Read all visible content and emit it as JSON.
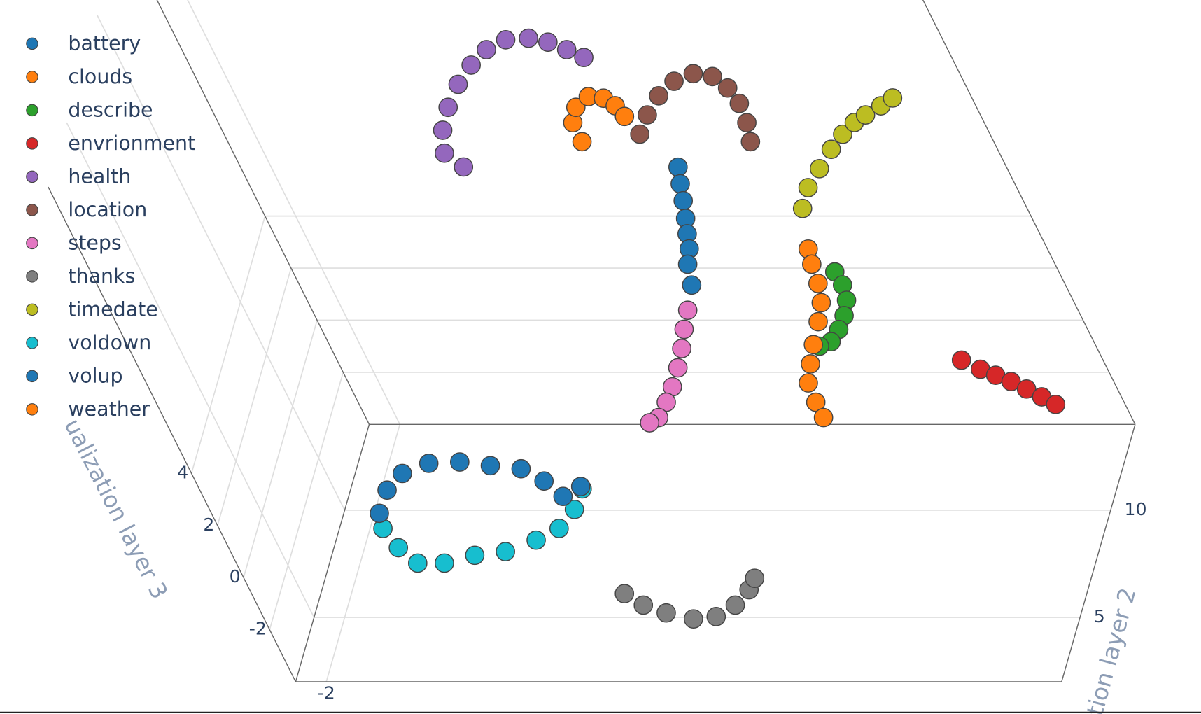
{
  "chart_data": {
    "type": "scatter3d",
    "zlabel": "ualization layer 3",
    "ylabel": "ation layer 2",
    "xlim": [
      -3,
      22
    ],
    "ylim": [
      2,
      14
    ],
    "zlim": [
      -4,
      15
    ],
    "xticks": [
      -2
    ],
    "yticks": [
      5,
      10
    ],
    "zticks": [
      -2,
      0,
      2,
      4
    ],
    "grid": true,
    "legend": "top-left",
    "series": [
      {
        "name": "battery",
        "color": "#1f77b4",
        "x": [
          14.58,
          14.38,
          14.2,
          13.99,
          13.79,
          13.61,
          13.31,
          13.1
        ],
        "y": [
          8,
          8,
          8,
          8,
          8,
          8,
          8,
          8
        ],
        "z": [
          10.82,
          10.18,
          9.53,
          8.85,
          8.26,
          7.68,
          7.09,
          6.29
        ]
      },
      {
        "name": "clouds",
        "color": "#ff7f0e",
        "x": [
          10.76,
          10.77,
          11.12,
          11.7,
          12.17,
          12.43,
          12.56
        ],
        "y": [
          10,
          10,
          10,
          10,
          10,
          10,
          10
        ],
        "z": [
          10.15,
          10.88,
          11.47,
          11.88,
          11.82,
          11.53,
          11.12
        ]
      },
      {
        "name": "describe",
        "color": "#2ca02c",
        "x": [
          18.81,
          18.85,
          18.73,
          18.4,
          18.0,
          17.55,
          17.1
        ],
        "y": [
          6.5,
          6.5,
          6.5,
          6.5,
          6.5,
          6.5,
          6.5
        ],
        "z": [
          8.03,
          7.53,
          6.94,
          6.35,
          5.82,
          5.35,
          5.18
        ]
      },
      {
        "name": "envrionment",
        "color": "#d62728",
        "x": [
          17.93,
          18.4,
          18.8,
          19.2,
          19.58,
          19.95,
          20.28
        ],
        "y": [
          13,
          13,
          13,
          13,
          13,
          13,
          13
        ],
        "z": [
          -0.71,
          -1.06,
          -1.29,
          -1.53,
          -1.82,
          -2.12,
          -2.41
        ]
      },
      {
        "name": "health",
        "color": "#9467bd",
        "x": [
          6.48,
          6.08,
          6.4,
          6.95,
          7.65,
          8.39,
          9.14,
          9.93,
          10.7,
          11.27,
          11.76,
          12.19
        ],
        "y": [
          10,
          10,
          10,
          10,
          10,
          10,
          10,
          10,
          10,
          10,
          10,
          10
        ],
        "z": [
          9.18,
          9.71,
          10.59,
          11.47,
          12.35,
          13.09,
          13.68,
          14.06,
          14.12,
          13.97,
          13.68,
          13.38
        ]
      },
      {
        "name": "location",
        "color": "#8c564b",
        "x": [
          12.77,
          13.33,
          14.01,
          14.75,
          15.5,
          16.08,
          16.39,
          16.52,
          16.45,
          16.26
        ],
        "y": [
          10,
          10,
          10,
          10,
          10,
          10,
          10,
          10,
          10,
          10
        ],
        "z": [
          10.44,
          11.18,
          11.91,
          12.47,
          12.76,
          12.65,
          12.21,
          11.62,
          10.88,
          10.15
        ]
      },
      {
        "name": "steps",
        "color": "#e377c2",
        "x": [
          13.66,
          13.23,
          12.84,
          12.4,
          11.91,
          11.46,
          10.96,
          10.58
        ],
        "y": [
          6,
          6,
          6,
          6,
          6,
          6,
          6,
          6
        ],
        "z": [
          6.97,
          6.24,
          5.5,
          4.76,
          4.03,
          3.44,
          2.85,
          2.65
        ]
      },
      {
        "name": "thanks",
        "color": "#7f7f7f",
        "x": [
          8.62,
          9.05,
          9.67,
          10.46,
          11.24,
          12.05,
          12.75,
          13.12
        ],
        "y": [
          3,
          3,
          3,
          3,
          3,
          3,
          3,
          3
        ],
        "z": [
          -1.44,
          -1.88,
          -2.18,
          -2.41,
          -2.32,
          -1.88,
          -1.29,
          -0.85
        ]
      },
      {
        "name": "timedate",
        "color": "#bcbd22",
        "x": [
          15.77,
          16.29,
          16.97,
          17.67,
          18.29,
          18.86,
          19.35,
          20.0,
          20.51
        ],
        "y": [
          12,
          12,
          12,
          12,
          12,
          12,
          12,
          12,
          12
        ],
        "z": [
          5.94,
          6.74,
          7.47,
          8.21,
          8.79,
          9.24,
          9.53,
          9.88,
          10.18
        ]
      },
      {
        "name": "voldown",
        "color": "#17becf",
        "x": [
          1.25,
          1.44,
          1.82,
          2.69,
          3.81,
          4.87,
          6.06,
          7.0,
          7.81,
          8.4
        ],
        "y": [
          4,
          4,
          4,
          4,
          4,
          4,
          4,
          4,
          4,
          4
        ],
        "z": [
          0.24,
          -0.5,
          -1.09,
          -1.09,
          -0.79,
          -0.65,
          -0.21,
          0.24,
          0.97,
          1.76
        ]
      },
      {
        "name": "volup",
        "color": "#1f77b4",
        "x": [
          1.38,
          2.01,
          2.78,
          3.81,
          4.84,
          5.78,
          6.73,
          7.28,
          7.65,
          8.39
        ],
        "y": [
          4,
          4,
          4,
          4,
          4,
          4,
          4,
          4,
          4,
          4
        ],
        "z": [
          0.82,
          1.71,
          2.35,
          2.74,
          2.79,
          2.65,
          2.53,
          2.06,
          1.47,
          1.85
        ]
      },
      {
        "name": "weather",
        "color": "#ff7f0e",
        "x": [
          18.59,
          18.46,
          18.35,
          18.14,
          17.73,
          17.2,
          16.79,
          16.41,
          16.34,
          16.34
        ],
        "y": [
          6,
          6,
          6,
          6,
          6,
          6,
          6,
          6,
          6,
          6
        ],
        "z": [
          9.32,
          8.74,
          8.0,
          7.26,
          6.53,
          5.65,
          4.91,
          4.18,
          3.44,
          2.85
        ]
      }
    ]
  }
}
